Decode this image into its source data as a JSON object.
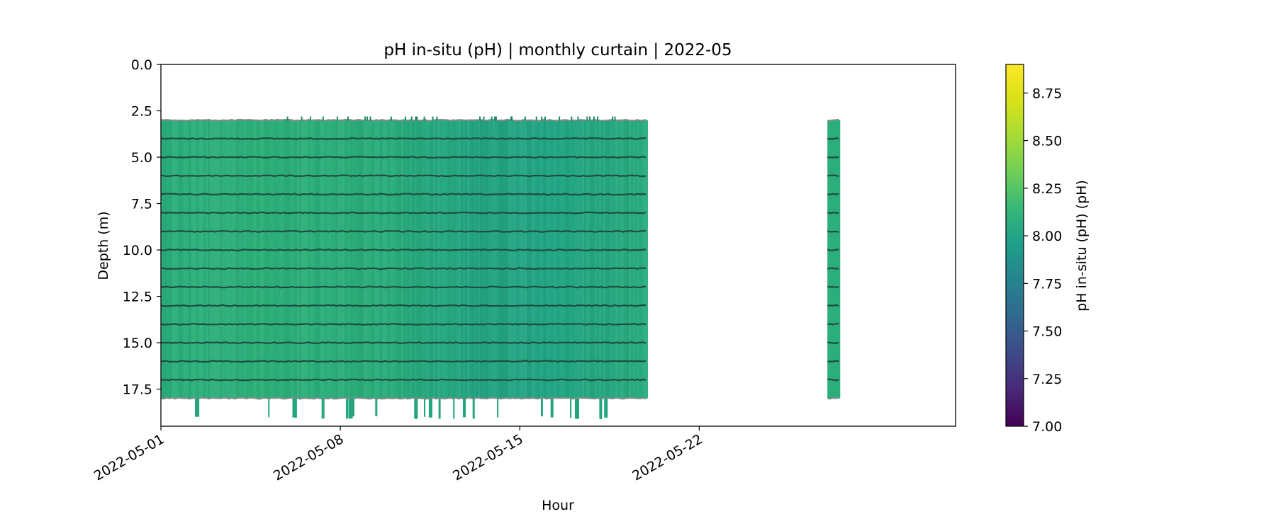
{
  "chart_data": {
    "type": "heatmap",
    "title": "pH in-situ (pH) | monthly curtain | 2022-05",
    "xlabel": "Hour",
    "ylabel": "Depth (m)",
    "colorbar_label": "pH in-situ (pH) (pH)",
    "colormap": "viridis",
    "x_axis": {
      "kind": "date",
      "min": "2022-05-01",
      "max": "2022-06-01",
      "ticks": [
        "2022-05-01",
        "2022-05-08",
        "2022-05-15",
        "2022-05-22"
      ]
    },
    "y_axis": {
      "inverted": true,
      "min": 0.0,
      "max": 19.5,
      "ticks": [
        0.0,
        2.5,
        5.0,
        7.5,
        10.0,
        12.5,
        15.0,
        17.5
      ],
      "tick_labels": [
        "0.0",
        "2.5",
        "5.0",
        "7.5",
        "10.0",
        "12.5",
        "15.0",
        "17.5"
      ]
    },
    "colorbar": {
      "min": 7.0,
      "max": 8.9,
      "ticks": [
        7.0,
        7.25,
        7.5,
        7.75,
        8.0,
        8.25,
        8.5,
        8.75
      ],
      "tick_labels": [
        "7.00",
        "7.25",
        "7.50",
        "7.75",
        "8.00",
        "8.25",
        "8.50",
        "8.75"
      ]
    },
    "data_blocks": [
      {
        "start": "2022-05-01",
        "end": "2022-05-20",
        "depth_top": 3.0,
        "depth_bottom": 18.0,
        "ph_profile": [
          8.2,
          8.22,
          8.19,
          8.13,
          8.12,
          8.16,
          8.2
        ]
      },
      {
        "start": "2022-05-27",
        "end": "2022-05-27T12:00",
        "depth_top": 3.0,
        "depth_bottom": 18.0,
        "ph_profile": [
          8.2
        ]
      }
    ],
    "sensor_depths": [
      3,
      4,
      5,
      6,
      7,
      8,
      9,
      10,
      11,
      12,
      13,
      14,
      15,
      16,
      17,
      18
    ],
    "deep_spikes_depth": 19.0
  }
}
